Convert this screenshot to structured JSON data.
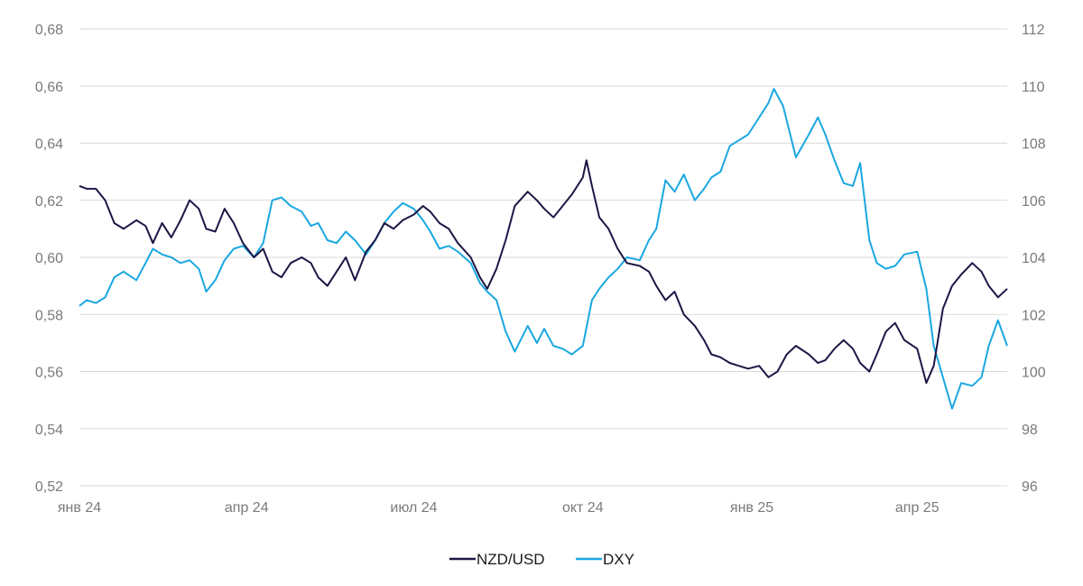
{
  "chart_data": {
    "type": "line",
    "y_left": {
      "ticks": [
        "0,52",
        "0,54",
        "0,56",
        "0,58",
        "0,60",
        "0,62",
        "0,64",
        "0,66",
        "0,68"
      ],
      "min": 0.52,
      "max": 0.68
    },
    "y_right": {
      "ticks": [
        "96",
        "98",
        "100",
        "102",
        "104",
        "106",
        "108",
        "110",
        "112"
      ],
      "min": 96,
      "max": 112
    },
    "x_ticks": [
      {
        "label": "янв 24",
        "date": "2024-01-01"
      },
      {
        "label": "апр 24",
        "date": "2024-04-01"
      },
      {
        "label": "июл 24",
        "date": "2024-07-01"
      },
      {
        "label": "окт 24",
        "date": "2024-10-01"
      },
      {
        "label": "янв 25",
        "date": "2025-01-01"
      },
      {
        "label": "апр 25",
        "date": "2025-04-01"
      }
    ],
    "x_range": [
      "2024-01-01",
      "2025-05-20"
    ],
    "grid": "horizontal",
    "legend_position": "bottom-center",
    "series": [
      {
        "name": "NZD/USD",
        "axis": "left",
        "color": "#1b1745",
        "points": [
          [
            "2024-01-01",
            0.625
          ],
          [
            "2024-01-05",
            0.624
          ],
          [
            "2024-01-10",
            0.624
          ],
          [
            "2024-01-15",
            0.62
          ],
          [
            "2024-01-20",
            0.612
          ],
          [
            "2024-01-25",
            0.61
          ],
          [
            "2024-02-01",
            0.613
          ],
          [
            "2024-02-06",
            0.611
          ],
          [
            "2024-02-10",
            0.605
          ],
          [
            "2024-02-15",
            0.612
          ],
          [
            "2024-02-20",
            0.607
          ],
          [
            "2024-02-25",
            0.613
          ],
          [
            "2024-03-01",
            0.62
          ],
          [
            "2024-03-06",
            0.617
          ],
          [
            "2024-03-10",
            0.61
          ],
          [
            "2024-03-15",
            0.609
          ],
          [
            "2024-03-20",
            0.617
          ],
          [
            "2024-03-25",
            0.612
          ],
          [
            "2024-03-30",
            0.605
          ],
          [
            "2024-04-05",
            0.6
          ],
          [
            "2024-04-10",
            0.603
          ],
          [
            "2024-04-15",
            0.595
          ],
          [
            "2024-04-20",
            0.593
          ],
          [
            "2024-04-25",
            0.598
          ],
          [
            "2024-05-01",
            0.6
          ],
          [
            "2024-05-06",
            0.598
          ],
          [
            "2024-05-10",
            0.593
          ],
          [
            "2024-05-15",
            0.59
          ],
          [
            "2024-05-20",
            0.595
          ],
          [
            "2024-05-25",
            0.6
          ],
          [
            "2024-05-30",
            0.592
          ],
          [
            "2024-06-05",
            0.602
          ],
          [
            "2024-06-10",
            0.606
          ],
          [
            "2024-06-15",
            0.612
          ],
          [
            "2024-06-20",
            0.61
          ],
          [
            "2024-06-25",
            0.613
          ],
          [
            "2024-07-01",
            0.615
          ],
          [
            "2024-07-06",
            0.618
          ],
          [
            "2024-07-10",
            0.616
          ],
          [
            "2024-07-15",
            0.612
          ],
          [
            "2024-07-20",
            0.61
          ],
          [
            "2024-07-25",
            0.605
          ],
          [
            "2024-08-01",
            0.6
          ],
          [
            "2024-08-06",
            0.593
          ],
          [
            "2024-08-10",
            0.589
          ],
          [
            "2024-08-15",
            0.596
          ],
          [
            "2024-08-20",
            0.606
          ],
          [
            "2024-08-25",
            0.618
          ],
          [
            "2024-09-01",
            0.623
          ],
          [
            "2024-09-06",
            0.62
          ],
          [
            "2024-09-10",
            0.617
          ],
          [
            "2024-09-15",
            0.614
          ],
          [
            "2024-09-20",
            0.618
          ],
          [
            "2024-09-25",
            0.622
          ],
          [
            "2024-10-01",
            0.628
          ],
          [
            "2024-10-03",
            0.634
          ],
          [
            "2024-10-06",
            0.625
          ],
          [
            "2024-10-10",
            0.614
          ],
          [
            "2024-10-15",
            0.61
          ],
          [
            "2024-10-20",
            0.603
          ],
          [
            "2024-10-25",
            0.598
          ],
          [
            "2024-11-01",
            0.597
          ],
          [
            "2024-11-06",
            0.595
          ],
          [
            "2024-11-10",
            0.59
          ],
          [
            "2024-11-15",
            0.585
          ],
          [
            "2024-11-20",
            0.588
          ],
          [
            "2024-11-25",
            0.58
          ],
          [
            "2024-12-01",
            0.576
          ],
          [
            "2024-12-06",
            0.571
          ],
          [
            "2024-12-10",
            0.566
          ],
          [
            "2024-12-15",
            0.565
          ],
          [
            "2024-12-20",
            0.563
          ],
          [
            "2024-12-25",
            0.562
          ],
          [
            "2024-12-30",
            0.561
          ],
          [
            "2025-01-05",
            0.562
          ],
          [
            "2025-01-10",
            0.558
          ],
          [
            "2025-01-15",
            0.56
          ],
          [
            "2025-01-20",
            0.566
          ],
          [
            "2025-01-25",
            0.569
          ],
          [
            "2025-02-01",
            0.566
          ],
          [
            "2025-02-06",
            0.563
          ],
          [
            "2025-02-10",
            0.564
          ],
          [
            "2025-02-15",
            0.568
          ],
          [
            "2025-02-20",
            0.571
          ],
          [
            "2025-02-25",
            0.568
          ],
          [
            "2025-03-01",
            0.563
          ],
          [
            "2025-03-06",
            0.56
          ],
          [
            "2025-03-10",
            0.566
          ],
          [
            "2025-03-15",
            0.574
          ],
          [
            "2025-03-20",
            0.577
          ],
          [
            "2025-03-25",
            0.571
          ],
          [
            "2025-04-01",
            0.568
          ],
          [
            "2025-04-06",
            0.556
          ],
          [
            "2025-04-10",
            0.562
          ],
          [
            "2025-04-15",
            0.582
          ],
          [
            "2025-04-20",
            0.59
          ],
          [
            "2025-04-25",
            0.594
          ],
          [
            "2025-05-01",
            0.598
          ],
          [
            "2025-05-06",
            0.595
          ],
          [
            "2025-05-10",
            0.59
          ],
          [
            "2025-05-15",
            0.586
          ],
          [
            "2025-05-20",
            0.589
          ]
        ]
      },
      {
        "name": "DXY",
        "axis": "right",
        "color": "#1aa7e0",
        "points": [
          [
            "2024-01-01",
            102.3
          ],
          [
            "2024-01-05",
            102.5
          ],
          [
            "2024-01-10",
            102.4
          ],
          [
            "2024-01-15",
            102.6
          ],
          [
            "2024-01-20",
            103.3
          ],
          [
            "2024-01-25",
            103.5
          ],
          [
            "2024-02-01",
            103.2
          ],
          [
            "2024-02-06",
            103.8
          ],
          [
            "2024-02-10",
            104.3
          ],
          [
            "2024-02-15",
            104.1
          ],
          [
            "2024-02-20",
            104.0
          ],
          [
            "2024-02-25",
            103.8
          ],
          [
            "2024-03-01",
            103.9
          ],
          [
            "2024-03-06",
            103.6
          ],
          [
            "2024-03-10",
            102.8
          ],
          [
            "2024-03-15",
            103.2
          ],
          [
            "2024-03-20",
            103.9
          ],
          [
            "2024-03-25",
            104.3
          ],
          [
            "2024-03-30",
            104.4
          ],
          [
            "2024-04-05",
            104.0
          ],
          [
            "2024-04-10",
            104.5
          ],
          [
            "2024-04-15",
            106.0
          ],
          [
            "2024-04-20",
            106.1
          ],
          [
            "2024-04-25",
            105.8
          ],
          [
            "2024-05-01",
            105.6
          ],
          [
            "2024-05-06",
            105.1
          ],
          [
            "2024-05-10",
            105.2
          ],
          [
            "2024-05-15",
            104.6
          ],
          [
            "2024-05-20",
            104.5
          ],
          [
            "2024-05-25",
            104.9
          ],
          [
            "2024-05-30",
            104.6
          ],
          [
            "2024-06-05",
            104.1
          ],
          [
            "2024-06-10",
            104.6
          ],
          [
            "2024-06-15",
            105.2
          ],
          [
            "2024-06-20",
            105.6
          ],
          [
            "2024-06-25",
            105.9
          ],
          [
            "2024-07-01",
            105.7
          ],
          [
            "2024-07-06",
            105.3
          ],
          [
            "2024-07-10",
            104.9
          ],
          [
            "2024-07-15",
            104.3
          ],
          [
            "2024-07-20",
            104.4
          ],
          [
            "2024-07-25",
            104.2
          ],
          [
            "2024-08-01",
            103.8
          ],
          [
            "2024-08-06",
            103.1
          ],
          [
            "2024-08-10",
            102.8
          ],
          [
            "2024-08-15",
            102.5
          ],
          [
            "2024-08-20",
            101.4
          ],
          [
            "2024-08-25",
            100.7
          ],
          [
            "2024-09-01",
            101.6
          ],
          [
            "2024-09-06",
            101.0
          ],
          [
            "2024-09-10",
            101.5
          ],
          [
            "2024-09-15",
            100.9
          ],
          [
            "2024-09-20",
            100.8
          ],
          [
            "2024-09-25",
            100.6
          ],
          [
            "2024-10-01",
            100.9
          ],
          [
            "2024-10-06",
            102.5
          ],
          [
            "2024-10-10",
            102.9
          ],
          [
            "2024-10-15",
            103.3
          ],
          [
            "2024-10-20",
            103.6
          ],
          [
            "2024-10-25",
            104.0
          ],
          [
            "2024-11-01",
            103.9
          ],
          [
            "2024-11-06",
            104.6
          ],
          [
            "2024-11-10",
            105.0
          ],
          [
            "2024-11-15",
            106.7
          ],
          [
            "2024-11-20",
            106.3
          ],
          [
            "2024-11-25",
            106.9
          ],
          [
            "2024-12-01",
            106.0
          ],
          [
            "2024-12-06",
            106.4
          ],
          [
            "2024-12-10",
            106.8
          ],
          [
            "2024-12-15",
            107.0
          ],
          [
            "2024-12-20",
            107.9
          ],
          [
            "2024-12-25",
            108.1
          ],
          [
            "2024-12-30",
            108.3
          ],
          [
            "2025-01-05",
            108.9
          ],
          [
            "2025-01-10",
            109.4
          ],
          [
            "2025-01-13",
            109.9
          ],
          [
            "2025-01-18",
            109.3
          ],
          [
            "2025-01-25",
            107.5
          ],
          [
            "2025-02-01",
            108.3
          ],
          [
            "2025-02-06",
            108.9
          ],
          [
            "2025-02-10",
            108.3
          ],
          [
            "2025-02-15",
            107.4
          ],
          [
            "2025-02-20",
            106.6
          ],
          [
            "2025-02-25",
            106.5
          ],
          [
            "2025-03-01",
            107.3
          ],
          [
            "2025-03-06",
            104.6
          ],
          [
            "2025-03-10",
            103.8
          ],
          [
            "2025-03-15",
            103.6
          ],
          [
            "2025-03-20",
            103.7
          ],
          [
            "2025-03-25",
            104.1
          ],
          [
            "2025-04-01",
            104.2
          ],
          [
            "2025-04-06",
            102.9
          ],
          [
            "2025-04-10",
            100.9
          ],
          [
            "2025-04-15",
            99.8
          ],
          [
            "2025-04-20",
            98.7
          ],
          [
            "2025-04-25",
            99.6
          ],
          [
            "2025-05-01",
            99.5
          ],
          [
            "2025-05-06",
            99.8
          ],
          [
            "2025-05-10",
            100.9
          ],
          [
            "2025-05-15",
            101.8
          ],
          [
            "2025-05-20",
            100.9
          ]
        ]
      }
    ]
  }
}
